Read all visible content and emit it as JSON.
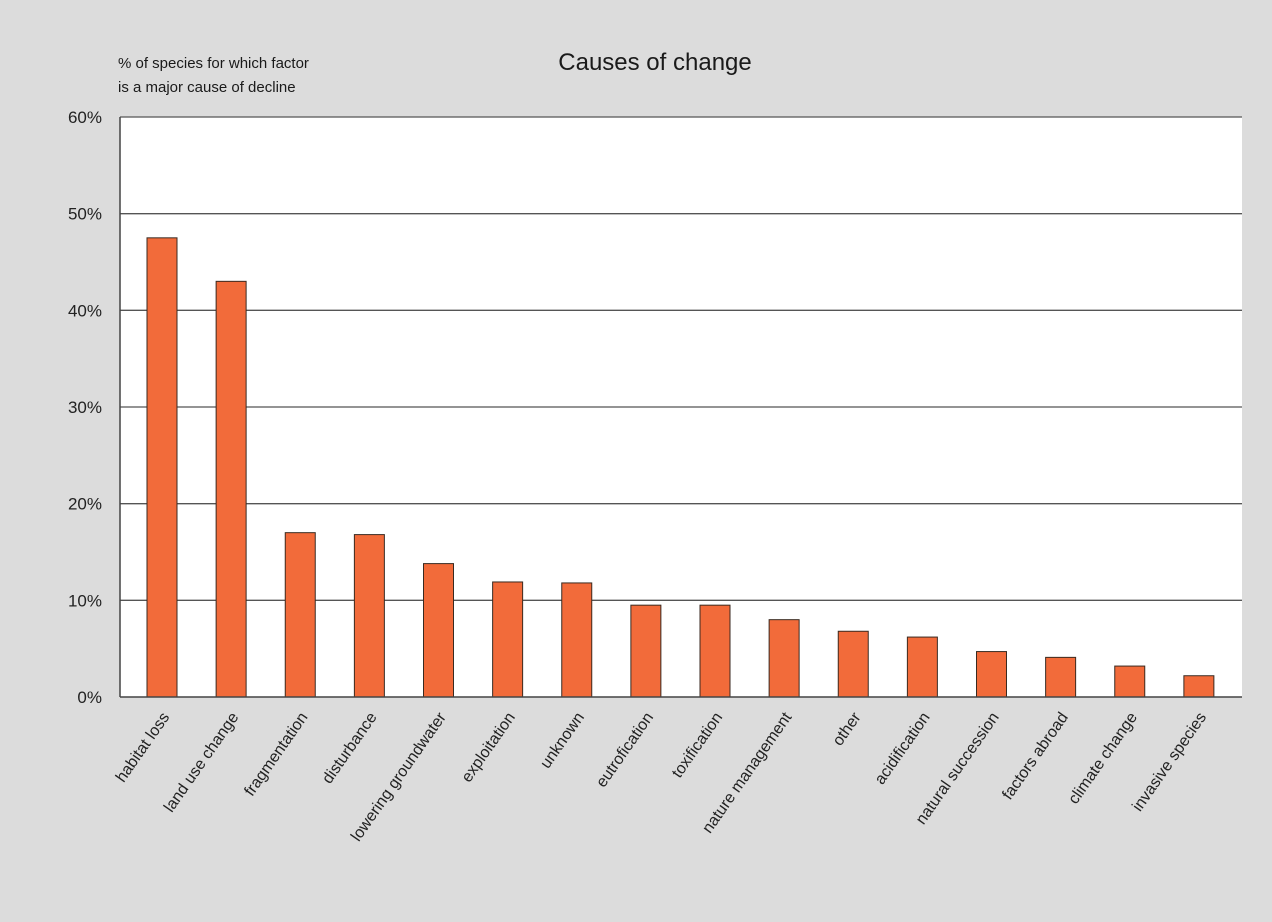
{
  "chart_data": {
    "type": "bar",
    "title": "Causes of change",
    "ylabel": [
      "% of species for which factor",
      "is a major cause of decline"
    ],
    "xlabel": "",
    "ylim": [
      0,
      60
    ],
    "yticks": [
      "0%",
      "10%",
      "20%",
      "30%",
      "40%",
      "50%",
      "60%"
    ],
    "ytick_values": [
      0,
      10,
      20,
      30,
      40,
      50,
      60
    ],
    "grid": "horizontal",
    "bar_color": "#f26b3a",
    "categories": [
      "habitat loss",
      "land use change",
      "fragmentation",
      "disturbance",
      "lowering groundwater",
      "exploitation",
      "unknown",
      "eutrofication",
      "toxification",
      "nature management",
      "other",
      "acidification",
      "natural succession",
      "factors abroad",
      "climate change",
      "invasive species"
    ],
    "values": [
      47.5,
      43,
      17,
      16.8,
      13.8,
      11.9,
      11.8,
      9.5,
      9.5,
      8,
      6.8,
      6.2,
      4.7,
      4.1,
      3.2,
      2.2
    ]
  }
}
